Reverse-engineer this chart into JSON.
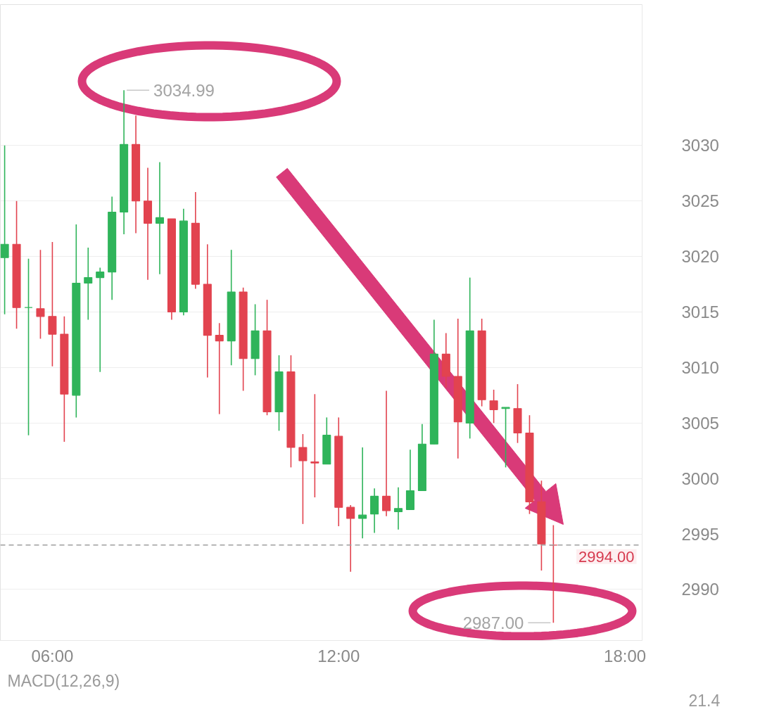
{
  "chart_data": {
    "type": "candlestick",
    "x": [
      5.0,
      5.25,
      5.5,
      5.75,
      6.0,
      6.25,
      6.5,
      6.75,
      7.0,
      7.25,
      7.5,
      7.75,
      8.0,
      8.25,
      8.5,
      8.75,
      9.0,
      9.25,
      9.5,
      9.75,
      10.0,
      10.25,
      10.5,
      10.75,
      11.0,
      11.25,
      11.5,
      11.75,
      12.0,
      12.25,
      12.5,
      12.75,
      13.0,
      13.25,
      13.5,
      13.75,
      14.0,
      14.25,
      14.5,
      14.75,
      15.0,
      15.25,
      15.5,
      15.75,
      16.0,
      16.25,
      16.5
    ],
    "ohlc": [
      [
        3019.9,
        3030.0,
        3014.8,
        3021.1
      ],
      [
        3021.1,
        3025.0,
        3013.5,
        3015.4
      ],
      [
        3015.4,
        3019.8,
        3003.9,
        3015.4
      ],
      [
        3015.3,
        3020.6,
        3012.6,
        3014.6
      ],
      [
        3014.6,
        3021.3,
        3010.1,
        3013.0
      ],
      [
        3013.0,
        3014.6,
        3003.3,
        3007.6
      ],
      [
        3007.5,
        3022.9,
        3005.5,
        3017.6
      ],
      [
        3017.6,
        3020.8,
        3014.3,
        3018.1
      ],
      [
        3018.1,
        3019.0,
        3009.6,
        3018.6
      ],
      [
        3018.6,
        3025.4,
        3016.1,
        3024.0
      ],
      [
        3024.0,
        3034.99,
        3022.0,
        3030.1
      ],
      [
        3030.1,
        3032.7,
        3022.1,
        3025.0
      ],
      [
        3025.0,
        3028.0,
        3017.9,
        3023.0
      ],
      [
        3023.0,
        3028.5,
        3018.4,
        3023.5
      ],
      [
        3023.4,
        3023.4,
        3014.3,
        3015.0
      ],
      [
        3015.0,
        3024.3,
        3014.7,
        3023.2
      ],
      [
        3023.0,
        3025.8,
        3017.1,
        3017.5
      ],
      [
        3017.5,
        3021.1,
        3009.1,
        3012.9
      ],
      [
        3012.9,
        3014.0,
        3005.8,
        3012.4
      ],
      [
        3012.4,
        3020.6,
        3010.2,
        3016.8
      ],
      [
        3016.8,
        3017.2,
        3007.9,
        3010.8
      ],
      [
        3010.8,
        3015.7,
        3009.3,
        3013.3
      ],
      [
        3013.3,
        3016.1,
        3005.7,
        3006.0
      ],
      [
        3006.0,
        3011.1,
        3004.3,
        3009.6
      ],
      [
        3009.6,
        3011.1,
        3001.0,
        3002.8
      ],
      [
        3002.8,
        3004.0,
        2995.9,
        3001.6
      ],
      [
        3001.5,
        3007.6,
        2998.3,
        3001.4
      ],
      [
        3001.3,
        3005.5,
        3001.3,
        3003.9
      ],
      [
        3003.8,
        3005.5,
        2995.7,
        2997.4
      ],
      [
        2997.4,
        2997.6,
        2991.6,
        2996.4
      ],
      [
        2996.4,
        3002.8,
        2994.6,
        2996.7
      ],
      [
        2996.8,
        2999.1,
        2995.1,
        2998.4
      ],
      [
        2998.4,
        3007.9,
        2996.6,
        2997.1
      ],
      [
        2997.0,
        2999.2,
        2995.4,
        2997.3
      ],
      [
        2997.2,
        3002.6,
        2997.2,
        2998.9
      ],
      [
        2998.9,
        3004.9,
        2998.9,
        3003.1
      ],
      [
        3003.1,
        3014.3,
        3003.1,
        3011.2
      ],
      [
        3011.2,
        3013.1,
        3008.2,
        3009.2
      ],
      [
        3009.2,
        3014.4,
        3001.8,
        3005.1
      ],
      [
        3005.0,
        3018.1,
        3003.6,
        3013.3
      ],
      [
        3013.3,
        3014.4,
        3006.5,
        3007.1
      ],
      [
        3007.0,
        3008.0,
        3005.0,
        3006.2
      ],
      [
        3006.3,
        3006.4,
        3001.0,
        3006.4
      ],
      [
        3006.3,
        3008.5,
        3003.2,
        3004.1
      ],
      [
        3004.1,
        3005.7,
        2996.8,
        2997.9
      ],
      [
        2997.9,
        2999.8,
        2991.7,
        2994.1
      ],
      [
        2994.0,
        2995.8,
        2987.0,
        2994.0
      ]
    ],
    "colors": [
      "#2fb45a",
      "#e2434f",
      "#2fb45a",
      "#e2434f",
      "#e2434f",
      "#e2434f",
      "#2fb45a",
      "#2fb45a",
      "#2fb45a",
      "#2fb45a",
      "#2fb45a",
      "#e2434f",
      "#e2434f",
      "#2fb45a",
      "#e2434f",
      "#2fb45a",
      "#e2434f",
      "#e2434f",
      "#e2434f",
      "#2fb45a",
      "#e2434f",
      "#2fb45a",
      "#e2434f",
      "#2fb45a",
      "#e2434f",
      "#e2434f",
      "#e2434f",
      "#2fb45a",
      "#e2434f",
      "#e2434f",
      "#2fb45a",
      "#2fb45a",
      "#e2434f",
      "#2fb45a",
      "#2fb45a",
      "#2fb45a",
      "#2fb45a",
      "#e2434f",
      "#e2434f",
      "#2fb45a",
      "#e2434f",
      "#e2434f",
      "#2fb45a",
      "#e2434f",
      "#e2434f",
      "#e2434f",
      "#e2434f"
    ],
    "xlim": [
      4.91,
      18.36
    ],
    "ylim": [
      2985.4,
      3042.7
    ],
    "xticks": [
      {
        "value": 6,
        "label": "06:00"
      },
      {
        "value": 12,
        "label": "12:00"
      },
      {
        "value": 18,
        "label": "18:00"
      }
    ],
    "yticks": [
      2990,
      2995,
      3000,
      3005,
      3010,
      3015,
      3020,
      3025,
      3030
    ],
    "grid": "y",
    "ref_lines": [
      {
        "axis": "y",
        "value": 2994.0,
        "label": "2994.00",
        "color": "#9e9e9e",
        "line_style": "dashed"
      }
    ],
    "annotations": [
      {
        "text": "3034.99",
        "x": 7.5,
        "y": 3034.99
      },
      {
        "text": "2987.00",
        "x": 16.5,
        "y": 2987.0
      },
      "MACD(12,26,9)",
      "21.4"
    ]
  }
}
